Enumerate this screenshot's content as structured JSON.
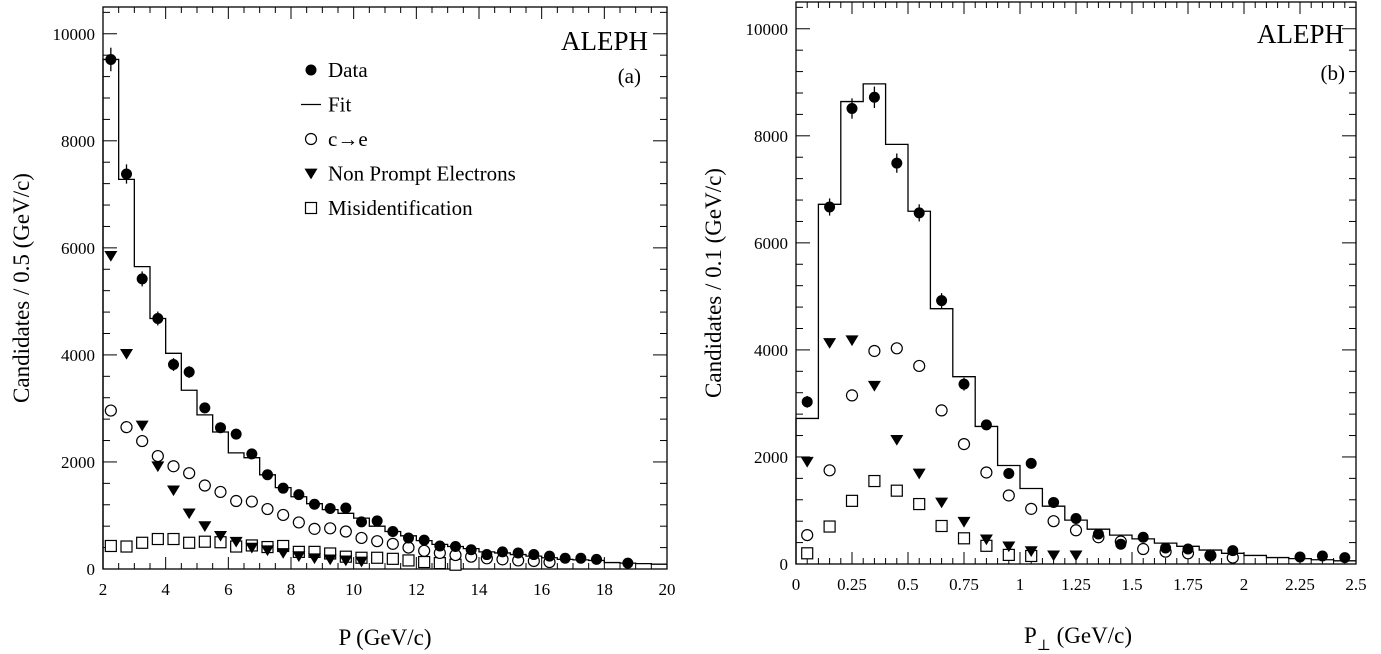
{
  "chart_data": [
    {
      "type": "scatter",
      "panel_label": "(a)",
      "experiment_label": "ALEPH",
      "xlabel": "P (GeV/c)",
      "ylabel": "Candidates / 0.5 (GeV/c)",
      "xlim": [
        2,
        20
      ],
      "ylim": [
        0,
        10500
      ],
      "xticks": [
        2,
        4,
        6,
        8,
        10,
        12,
        14,
        16,
        18,
        20
      ],
      "xtick_labels": [
        "2",
        "4",
        "6",
        "8",
        "10",
        "12",
        "14",
        "16",
        "18",
        "20"
      ],
      "yticks": [
        0,
        2000,
        4000,
        6000,
        8000,
        10000
      ],
      "ytick_labels": [
        "0",
        "2000",
        "4000",
        "6000",
        "8000",
        "10000"
      ],
      "legend": [
        {
          "symbol": "filled-circle",
          "label": "Data"
        },
        {
          "symbol": "line",
          "label": "Fit"
        },
        {
          "symbol": "open-circle",
          "label": "c→e"
        },
        {
          "symbol": "filled-triangle-down",
          "label": "Non Prompt Electrons"
        },
        {
          "symbol": "open-square",
          "label": "Misidentification"
        }
      ],
      "legend_position": "top-right",
      "series": [
        {
          "name": "Data",
          "style": "filled-circle-errorbar",
          "x": [
            2.25,
            2.75,
            3.25,
            3.75,
            4.25,
            4.75,
            5.25,
            5.75,
            6.25,
            6.75,
            7.25,
            7.75,
            8.25,
            8.75,
            9.25,
            9.75,
            10.25,
            10.75,
            11.25,
            11.75,
            12.25,
            12.75,
            13.25,
            13.75,
            14.25,
            14.75,
            15.25,
            15.75,
            16.25,
            16.75,
            17.25,
            17.75,
            18.75
          ],
          "y": [
            9520,
            7380,
            5420,
            4680,
            3820,
            3680,
            3010,
            2640,
            2520,
            2150,
            1760,
            1510,
            1390,
            1210,
            1130,
            1140,
            880,
            900,
            700,
            580,
            540,
            430,
            420,
            360,
            270,
            320,
            300,
            270,
            240,
            200,
            200,
            180,
            110
          ],
          "yerr": [
            220,
            180,
            140,
            130,
            120,
            110,
            100,
            100,
            100,
            90,
            80,
            80,
            70,
            60,
            60,
            60,
            60,
            60,
            50,
            50,
            50,
            40,
            40,
            40,
            40,
            40,
            40,
            30,
            30,
            30,
            30,
            30,
            30
          ]
        },
        {
          "name": "Fit",
          "style": "histogram-step",
          "bin_edges": [
            2,
            2.5,
            3,
            3.5,
            4,
            4.5,
            5,
            5.5,
            6,
            6.5,
            7,
            7.5,
            8,
            8.5,
            9,
            9.5,
            10,
            10.5,
            11,
            11.5,
            12,
            12.5,
            13,
            13.5,
            14,
            14.5,
            15,
            15.5,
            16,
            16.5,
            17,
            17.5,
            18,
            18.5,
            19,
            19.5,
            20
          ],
          "y": [
            9520,
            7280,
            5650,
            4680,
            4030,
            3340,
            2880,
            2560,
            2170,
            2080,
            1760,
            1520,
            1350,
            1220,
            1110,
            1040,
            950,
            800,
            700,
            620,
            530,
            460,
            420,
            380,
            320,
            300,
            270,
            240,
            210,
            180,
            170,
            160,
            120,
            110,
            100,
            90
          ]
        },
        {
          "name": "c→e",
          "style": "open-circle",
          "x": [
            2.25,
            2.75,
            3.25,
            3.75,
            4.25,
            4.75,
            5.25,
            5.75,
            6.25,
            6.75,
            7.25,
            7.75,
            8.25,
            8.75,
            9.25,
            9.75,
            10.25,
            10.75,
            11.25,
            11.75,
            12.25,
            12.75,
            13.25,
            13.75,
            14.25,
            14.75,
            15.25,
            15.75,
            16.25
          ],
          "y": [
            2960,
            2650,
            2390,
            2110,
            1920,
            1790,
            1560,
            1440,
            1270,
            1260,
            1120,
            1010,
            870,
            750,
            760,
            700,
            580,
            520,
            470,
            400,
            340,
            300,
            260,
            230,
            200,
            180,
            160,
            150,
            130
          ]
        },
        {
          "name": "Non Prompt Electrons",
          "style": "filled-triangle-down",
          "x": [
            2.25,
            2.75,
            3.25,
            3.75,
            4.25,
            4.75,
            5.25,
            5.75,
            6.25,
            6.75,
            7.25,
            7.75,
            8.25,
            8.75,
            9.25,
            9.75,
            10.25
          ],
          "y": [
            5850,
            4020,
            2680,
            1920,
            1470,
            1040,
            800,
            620,
            510,
            400,
            350,
            300,
            240,
            200,
            180,
            160,
            140
          ]
        },
        {
          "name": "Misidentification",
          "style": "open-square",
          "x": [
            2.25,
            2.75,
            3.25,
            3.75,
            4.25,
            4.75,
            5.25,
            5.75,
            6.25,
            6.75,
            7.25,
            7.75,
            8.25,
            8.75,
            9.25,
            9.75,
            10.25,
            10.75,
            11.25,
            11.75,
            12.25,
            12.75,
            13.25
          ],
          "y": [
            430,
            420,
            490,
            560,
            560,
            490,
            510,
            500,
            420,
            440,
            410,
            430,
            320,
            320,
            290,
            230,
            210,
            210,
            190,
            160,
            130,
            110,
            80
          ]
        }
      ]
    },
    {
      "type": "scatter",
      "panel_label": "(b)",
      "experiment_label": "ALEPH",
      "xlabel_main": "P",
      "xlabel_sub": "⊥",
      "xlabel_unit": " (GeV/c)",
      "ylabel": "Candidates / 0.1 (GeV/c)",
      "xlim": [
        0,
        2.5
      ],
      "ylim": [
        0,
        10500
      ],
      "xticks": [
        0,
        0.25,
        0.5,
        0.75,
        1,
        1.25,
        1.5,
        1.75,
        2,
        2.25,
        2.5
      ],
      "xtick_labels": [
        "0",
        "0.25",
        "0.5",
        "0.75",
        "1",
        "1.25",
        "1.5",
        "1.75",
        "2",
        "2.25",
        "2.5"
      ],
      "yticks": [
        0,
        2000,
        4000,
        6000,
        8000,
        10000
      ],
      "ytick_labels": [
        "0",
        "2000",
        "4000",
        "6000",
        "8000",
        "10000"
      ],
      "series": [
        {
          "name": "Data",
          "style": "filled-circle-errorbar",
          "x": [
            0.05,
            0.15,
            0.25,
            0.35,
            0.45,
            0.55,
            0.65,
            0.75,
            0.85,
            0.95,
            1.05,
            1.15,
            1.25,
            1.35,
            1.45,
            1.55,
            1.65,
            1.75,
            1.85,
            1.95,
            2.25,
            2.35,
            2.45
          ],
          "y": [
            3030,
            6670,
            8510,
            8720,
            7490,
            6560,
            4920,
            3360,
            2600,
            1690,
            1880,
            1150,
            850,
            560,
            370,
            500,
            300,
            280,
            150,
            250,
            130,
            150,
            120
          ],
          "yerr": [
            110,
            160,
            190,
            200,
            180,
            160,
            140,
            120,
            100,
            90,
            90,
            70,
            60,
            50,
            40,
            50,
            40,
            40,
            30,
            40,
            30,
            30,
            30
          ]
        },
        {
          "name": "Fit",
          "style": "histogram-step",
          "bin_edges": [
            0,
            0.1,
            0.2,
            0.3,
            0.4,
            0.5,
            0.6,
            0.7,
            0.8,
            0.9,
            1.0,
            1.1,
            1.2,
            1.3,
            1.4,
            1.5,
            1.6,
            1.7,
            1.8,
            1.9,
            2.0,
            2.1,
            2.2,
            2.3,
            2.4,
            2.5
          ],
          "y": [
            2720,
            6720,
            8640,
            8970,
            7840,
            6590,
            4770,
            3500,
            2570,
            1840,
            1410,
            1080,
            820,
            650,
            540,
            470,
            390,
            330,
            260,
            200,
            160,
            120,
            100,
            80,
            60
          ]
        },
        {
          "name": "c→e",
          "style": "open-circle",
          "x": [
            0.05,
            0.15,
            0.25,
            0.35,
            0.45,
            0.55,
            0.65,
            0.75,
            0.85,
            0.95,
            1.05,
            1.15,
            1.25,
            1.35,
            1.45,
            1.55,
            1.65,
            1.75,
            1.85,
            1.95
          ],
          "y": [
            540,
            1750,
            3150,
            3980,
            4030,
            3700,
            2870,
            2240,
            1710,
            1280,
            1030,
            800,
            630,
            500,
            420,
            280,
            230,
            200,
            160,
            120
          ]
        },
        {
          "name": "Non Prompt Electrons",
          "style": "filled-triangle-down",
          "x": [
            0.05,
            0.15,
            0.25,
            0.35,
            0.45,
            0.55,
            0.65,
            0.75,
            0.85,
            0.95,
            1.05,
            1.15,
            1.25
          ],
          "y": [
            1910,
            4130,
            4180,
            3330,
            2320,
            1690,
            1150,
            790,
            460,
            330,
            240,
            160,
            160
          ]
        },
        {
          "name": "Misidentification",
          "style": "open-square",
          "x": [
            0.05,
            0.15,
            0.25,
            0.35,
            0.45,
            0.55,
            0.65,
            0.75,
            0.85,
            0.95,
            1.05
          ],
          "y": [
            200,
            700,
            1180,
            1550,
            1370,
            1120,
            710,
            480,
            340,
            170,
            150
          ]
        }
      ]
    }
  ]
}
